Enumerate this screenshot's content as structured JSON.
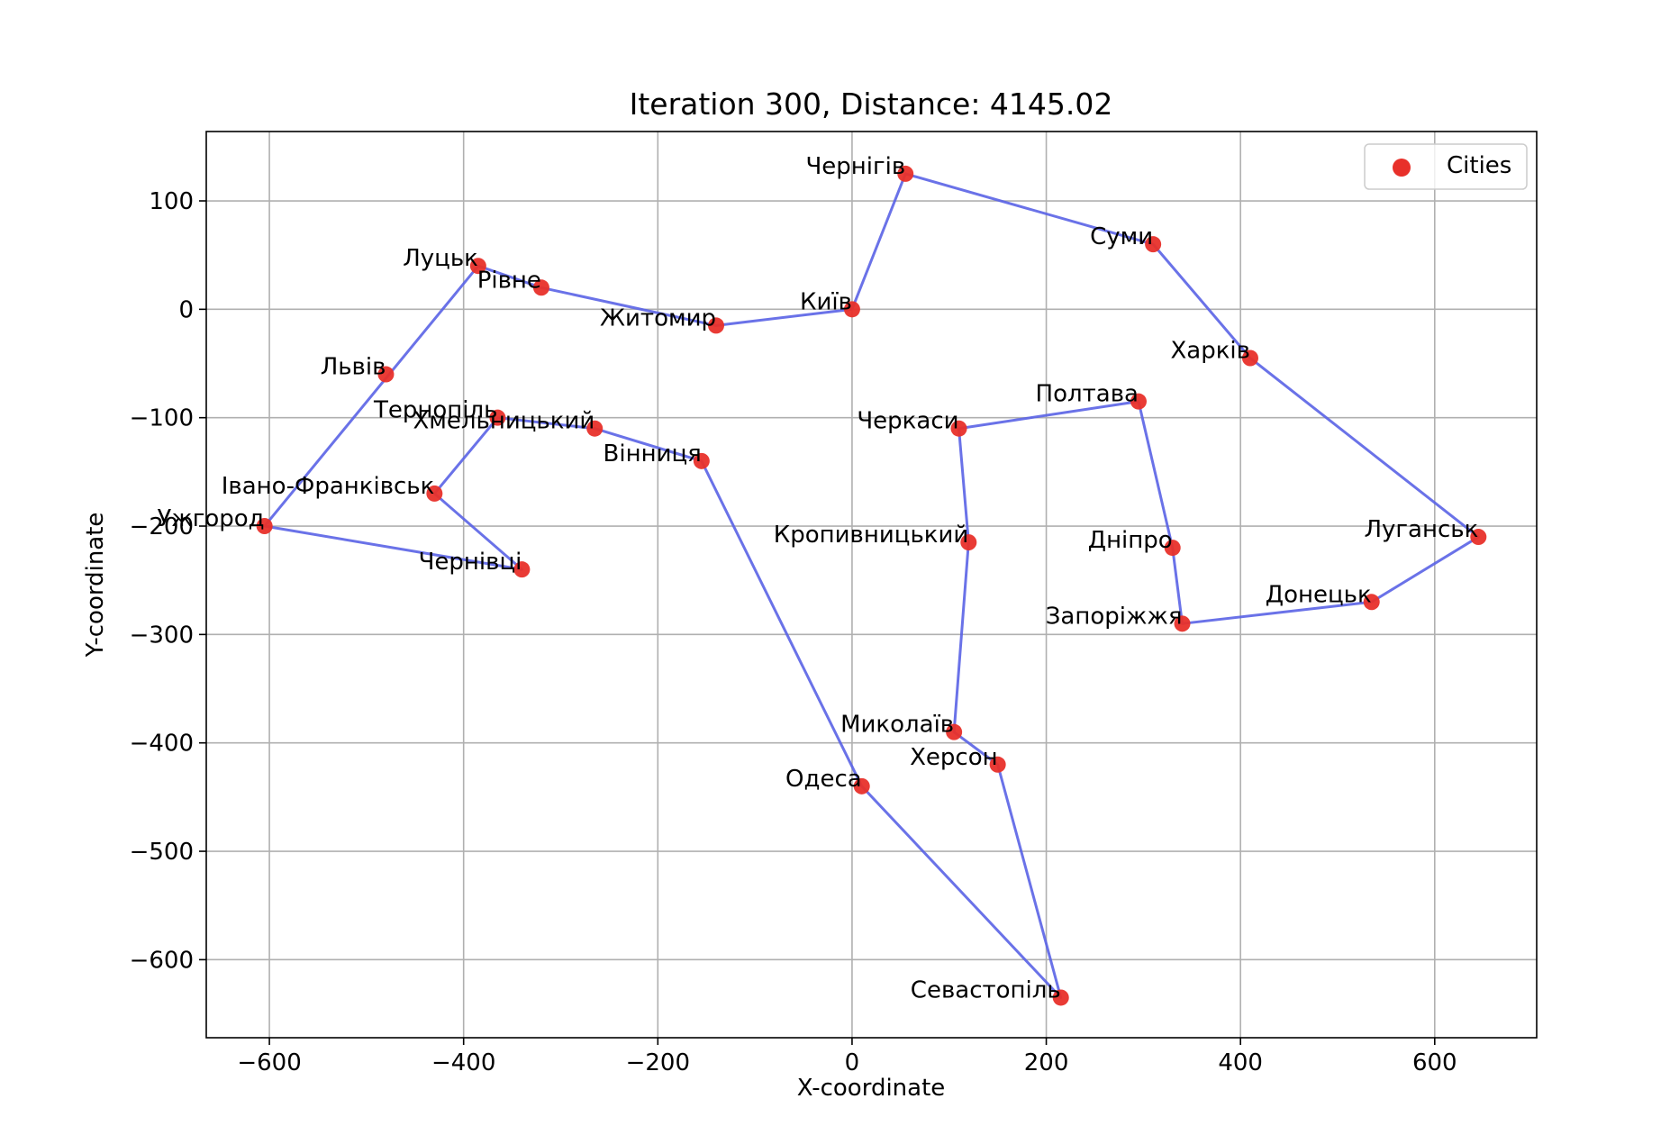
{
  "chart_data": {
    "type": "scatter",
    "title": "Iteration 300, Distance: 4145.02",
    "xlabel": "X-coordinate",
    "ylabel": "Y-coordinate",
    "xlim": [
      -665,
      705
    ],
    "ylim": [
      -672,
      164
    ],
    "xticks": [
      -600,
      -400,
      -200,
      0,
      200,
      400,
      600
    ],
    "yticks": [
      100,
      0,
      -100,
      -200,
      -300,
      -400,
      -500,
      -600
    ],
    "xtick_labels": [
      "−600",
      "−400",
      "−200",
      "0",
      "200",
      "400",
      "600"
    ],
    "ytick_labels": [
      "100",
      "0",
      "−100",
      "−200",
      "−300",
      "−400",
      "−500",
      "−600"
    ],
    "grid": true,
    "legend": {
      "position": "top-right",
      "entries": [
        "Cities"
      ]
    },
    "colors": {
      "points": "#e8302a",
      "route": "#5a63e6"
    },
    "cities": [
      {
        "name": "Київ",
        "x": 0,
        "y": 0
      },
      {
        "name": "Житомир",
        "x": -140,
        "y": -15
      },
      {
        "name": "Рівне",
        "x": -320,
        "y": 20
      },
      {
        "name": "Луцьк",
        "x": -385,
        "y": 40
      },
      {
        "name": "Львів",
        "x": -480,
        "y": -60
      },
      {
        "name": "Тернопіль",
        "x": -365,
        "y": -100
      },
      {
        "name": "Хмельницький",
        "x": -265,
        "y": -110
      },
      {
        "name": "Вінниця",
        "x": -155,
        "y": -140
      },
      {
        "name": "Івано-Франківськ",
        "x": -430,
        "y": -170
      },
      {
        "name": "Ужгород",
        "x": -605,
        "y": -200
      },
      {
        "name": "Чернівці",
        "x": -340,
        "y": -240
      },
      {
        "name": "Чернігів",
        "x": 55,
        "y": 125
      },
      {
        "name": "Суми",
        "x": 310,
        "y": 60
      },
      {
        "name": "Харків",
        "x": 410,
        "y": -45
      },
      {
        "name": "Луганськ",
        "x": 645,
        "y": -210
      },
      {
        "name": "Донецьк",
        "x": 535,
        "y": -270
      },
      {
        "name": "Запоріжжя",
        "x": 340,
        "y": -290
      },
      {
        "name": "Дніпро",
        "x": 330,
        "y": -220
      },
      {
        "name": "Полтава",
        "x": 295,
        "y": -85
      },
      {
        "name": "Черкаси",
        "x": 110,
        "y": -110
      },
      {
        "name": "Кропивницький",
        "x": 120,
        "y": -215
      },
      {
        "name": "Миколаїв",
        "x": 105,
        "y": -390
      },
      {
        "name": "Херсон",
        "x": 150,
        "y": -420
      },
      {
        "name": "Севастопіль",
        "x": 215,
        "y": -635
      },
      {
        "name": "Одеса",
        "x": 10,
        "y": -440
      }
    ],
    "route": [
      "Київ",
      "Чернігів",
      "Суми",
      "Харків",
      "Луганськ",
      "Донецьк",
      "Запоріжжя",
      "Дніпро",
      "Полтава",
      "Черкаси",
      "Кропивницький",
      "Миколаїв",
      "Херсон",
      "Севастопіль",
      "Одеса",
      "Вінниця",
      "Хмельницький",
      "Тернопіль",
      "Івано-Франківськ",
      "Чернівці",
      "Ужгород",
      "Луцьк",
      "Рівне",
      "Житомир",
      "Київ"
    ]
  }
}
